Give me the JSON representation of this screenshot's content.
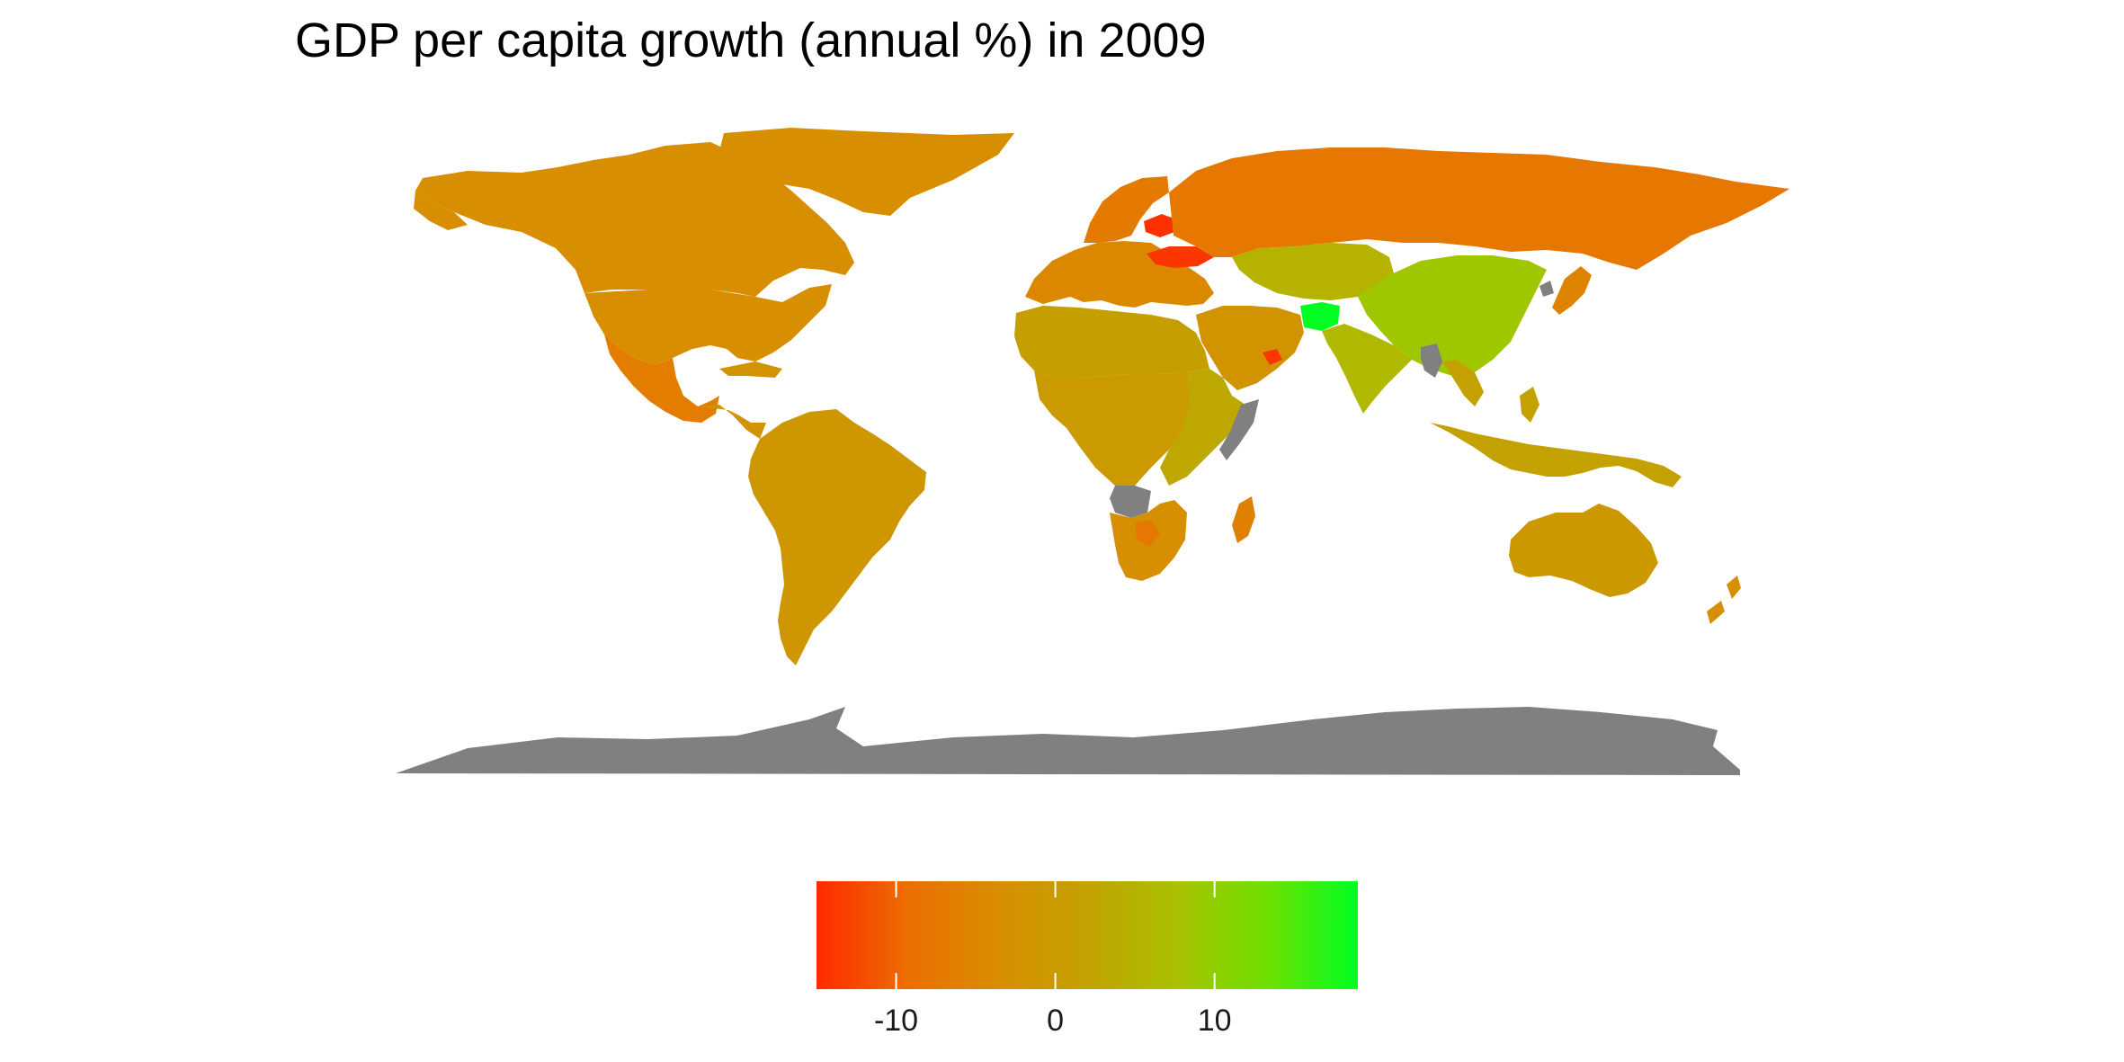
{
  "title": "GDP per capita growth (annual %) in 2009",
  "legend": {
    "min": -15,
    "max": 19,
    "ticks": [
      {
        "value": -10,
        "label": "-10"
      },
      {
        "value": 0,
        "label": "0"
      },
      {
        "value": 10,
        "label": "10"
      }
    ],
    "gradient_colors": [
      "#ff2a00",
      "#ec6d00",
      "#d88d00",
      "#c3a100",
      "#a9c100",
      "#6ee000",
      "#00ff22"
    ]
  },
  "colors": {
    "no_data": "#808080",
    "background": "#ffffff"
  },
  "regions": [
    {
      "name": "canada",
      "value": -3.5
    },
    {
      "name": "greenland",
      "value": -3.5
    },
    {
      "name": "usa",
      "value": -3.5
    },
    {
      "name": "mexico",
      "value": -6.5
    },
    {
      "name": "central-america",
      "value": -2
    },
    {
      "name": "south-america",
      "value": -1
    },
    {
      "name": "europe",
      "value": -4.5
    },
    {
      "name": "scandinavia",
      "value": -7
    },
    {
      "name": "russia",
      "value": -7.5
    },
    {
      "name": "ukraine",
      "value": -14
    },
    {
      "name": "baltics",
      "value": -14.5
    },
    {
      "name": "north-africa",
      "value": 1.5
    },
    {
      "name": "central-africa",
      "value": 0
    },
    {
      "name": "east-africa",
      "value": 3
    },
    {
      "name": "southern-africa",
      "value": -3
    },
    {
      "name": "botswana",
      "value": -7.5
    },
    {
      "name": "madagascar",
      "value": -6
    },
    {
      "name": "middle-east",
      "value": -2
    },
    {
      "name": "uae",
      "value": -14
    },
    {
      "name": "central-asia",
      "value": 5
    },
    {
      "name": "afghanistan",
      "value": 19
    },
    {
      "name": "india",
      "value": 6
    },
    {
      "name": "china",
      "value": 8.7
    },
    {
      "name": "japan",
      "value": -5.5
    },
    {
      "name": "southeast-asia",
      "value": 2
    },
    {
      "name": "australia",
      "value": -0.5
    },
    {
      "name": "new-zealand",
      "value": -3
    },
    {
      "name": "angola",
      "value": null
    },
    {
      "name": "antarctica",
      "value": null
    },
    {
      "name": "north-korea",
      "value": null
    },
    {
      "name": "myanmar",
      "value": null
    },
    {
      "name": "somalia",
      "value": null
    }
  ]
}
